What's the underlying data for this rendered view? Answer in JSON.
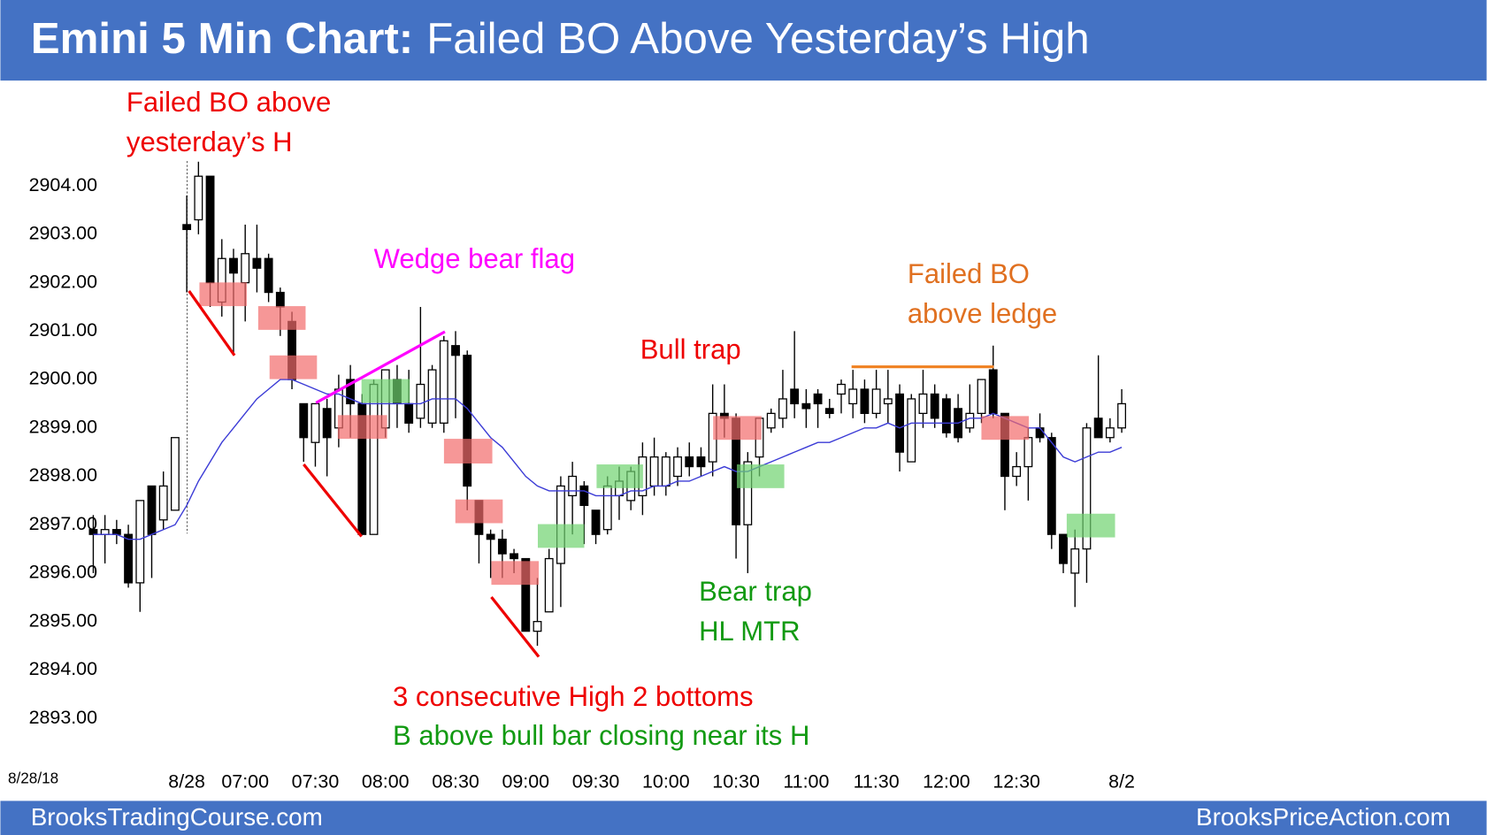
{
  "chart_data": {
    "type": "candlestick",
    "title_bold": "Emini 5 Min Chart:",
    "title": "Failed BO Above Yesterday’s High",
    "date_label": "8/28/18",
    "footer_left": "BrooksTradingCourse.com",
    "footer_right": "BrooksPriceAction.com",
    "categories": [
      null,
      null,
      null,
      null,
      null,
      null,
      null,
      null,
      "8/28",
      null,
      null,
      null,
      null,
      "07:00",
      null,
      null,
      null,
      null,
      null,
      "07:30",
      null,
      null,
      null,
      null,
      null,
      "08:00",
      null,
      null,
      null,
      null,
      null,
      "08:30",
      null,
      null,
      null,
      null,
      null,
      "09:00",
      null,
      null,
      null,
      null,
      null,
      "09:30",
      null,
      null,
      null,
      null,
      null,
      "10:00",
      null,
      null,
      null,
      null,
      null,
      "10:30",
      null,
      null,
      null,
      null,
      null,
      "11:00",
      null,
      null,
      null,
      null,
      null,
      "11:30",
      null,
      null,
      null,
      null,
      null,
      "12:00",
      null,
      null,
      null,
      null,
      null,
      "12:30",
      null,
      null,
      null,
      null,
      null,
      null,
      null,
      null,
      "8/2"
    ],
    "open": [
      2896.9,
      2896.8,
      2896.9,
      2896.8,
      2895.8,
      2897.8,
      2897.1,
      2897.3,
      2903.2,
      2903.3,
      2904.2,
      2901.6,
      2902.5,
      2902.0,
      2902.5,
      2902.5,
      2901.8,
      2901.2,
      2899.5,
      2898.7,
      2899.4,
      2899.0,
      2900.0,
      2899.5,
      2896.8,
      2899.0,
      2900.0,
      2899.5,
      2899.2,
      2899.1,
      2899.1,
      2900.7,
      2900.5,
      2897.5,
      2896.8,
      2896.7,
      2896.4,
      2896.3,
      2894.8,
      2895.2,
      2896.2,
      2897.6,
      2897.8,
      2897.3,
      2896.9,
      2897.6,
      2897.5,
      2897.6,
      2897.8,
      2897.8,
      2898.0,
      2898.4,
      2898.4,
      2898.3,
      2899.3,
      2899.2,
      2897.0,
      2898.4,
      2899.0,
      2899.2,
      2899.8,
      2899.5,
      2899.7,
      2899.4,
      2899.7,
      2899.5,
      2899.8,
      2899.3,
      2899.5,
      2899.7,
      2898.3,
      2899.3,
      2899.7,
      2899.6,
      2899.4,
      2899.0,
      2899.3,
      2900.2,
      2899.3,
      2898.0,
      2898.2,
      2899.0,
      2898.8,
      2896.8,
      2896.0,
      2896.5,
      2899.2,
      2898.8,
      2899.0
    ],
    "high": [
      2897.2,
      2897.2,
      2897.1,
      2897.0,
      2897.5,
      2897.8,
      2898.1,
      2898.8,
      2903.8,
      2904.5,
      2904.2,
      2902.9,
      2902.7,
      2903.2,
      2903.2,
      2902.6,
      2901.9,
      2901.4,
      2899.5,
      2899.5,
      2899.6,
      2900.1,
      2900.3,
      2899.7,
      2900.0,
      2900.2,
      2900.3,
      2900.2,
      2901.5,
      2900.3,
      2900.9,
      2901.0,
      2900.6,
      2897.5,
      2896.9,
      2896.9,
      2896.5,
      2896.3,
      2895.9,
      2896.5,
      2898.0,
      2898.3,
      2897.9,
      2897.3,
      2898.0,
      2898.2,
      2898.2,
      2898.7,
      2898.8,
      2898.5,
      2898.6,
      2898.7,
      2898.6,
      2899.9,
      2899.9,
      2899.3,
      2898.5,
      2899.2,
      2899.4,
      2900.2,
      2901.0,
      2899.8,
      2899.8,
      2899.6,
      2900.0,
      2900.2,
      2900.0,
      2900.2,
      2900.2,
      2899.9,
      2899.7,
      2900.2,
      2899.9,
      2899.7,
      2899.7,
      2899.9,
      2900.0,
      2900.7,
      2899.3,
      2898.5,
      2899.0,
      2899.3,
      2898.9,
      2896.8,
      2896.9,
      2899.1,
      2900.5,
      2899.2,
      2899.8
    ],
    "low": [
      2896.0,
      2896.2,
      2896.6,
      2895.7,
      2895.2,
      2895.9,
      2896.9,
      2897.3,
      2901.8,
      2903.0,
      2901.5,
      2901.3,
      2900.5,
      2901.2,
      2901.8,
      2901.6,
      2900.9,
      2899.8,
      2898.3,
      2898.2,
      2898.0,
      2898.6,
      2898.8,
      2896.8,
      2896.8,
      2898.8,
      2899.0,
      2898.9,
      2899.0,
      2899.0,
      2898.9,
      2899.2,
      2897.3,
      2896.2,
      2895.9,
      2895.9,
      2896.0,
      2894.8,
      2894.5,
      2895.3,
      2895.3,
      2896.8,
      2896.6,
      2896.6,
      2896.8,
      2897.1,
      2897.3,
      2897.2,
      2897.6,
      2897.6,
      2897.8,
      2898.0,
      2898.0,
      2898.0,
      2898.8,
      2896.3,
      2896.0,
      2898.0,
      2898.9,
      2899.0,
      2899.2,
      2899.0,
      2899.0,
      2899.2,
      2899.3,
      2899.2,
      2899.1,
      2899.2,
      2899.1,
      2898.1,
      2898.3,
      2899.0,
      2899.0,
      2898.8,
      2898.7,
      2898.9,
      2899.1,
      2899.2,
      2897.3,
      2897.8,
      2897.5,
      2898.7,
      2896.5,
      2896.0,
      2895.3,
      2895.8,
      2898.8,
      2898.7,
      2898.9
    ],
    "close": [
      2896.8,
      2896.9,
      2896.8,
      2895.8,
      2897.5,
      2896.8,
      2897.8,
      2898.8,
      2903.1,
      2904.2,
      2902.0,
      2902.5,
      2902.2,
      2902.6,
      2902.3,
      2901.8,
      2901.5,
      2900.0,
      2898.8,
      2899.5,
      2898.8,
      2899.8,
      2899.5,
      2896.8,
      2899.9,
      2900.2,
      2899.5,
      2899.1,
      2899.9,
      2900.2,
      2900.8,
      2900.5,
      2897.8,
      2896.8,
      2896.7,
      2896.4,
      2896.3,
      2894.8,
      2895.0,
      2896.3,
      2897.8,
      2898.0,
      2897.4,
      2896.8,
      2897.8,
      2897.9,
      2898.1,
      2898.4,
      2898.4,
      2898.4,
      2898.4,
      2898.2,
      2898.2,
      2899.3,
      2899.2,
      2897.0,
      2898.3,
      2899.2,
      2899.3,
      2899.6,
      2899.5,
      2899.4,
      2899.5,
      2899.3,
      2899.9,
      2899.8,
      2899.3,
      2899.8,
      2899.6,
      2898.5,
      2899.6,
      2899.7,
      2899.2,
      2898.9,
      2898.8,
      2899.3,
      2900.0,
      2899.3,
      2898.0,
      2898.2,
      2898.8,
      2898.8,
      2896.8,
      2896.2,
      2896.5,
      2899.0,
      2898.8,
      2899.0,
      2899.5
    ],
    "ema": [
      2896.8,
      2896.8,
      2896.8,
      2896.7,
      2896.7,
      2896.8,
      2896.9,
      2897.0,
      2897.4,
      2897.9,
      2898.3,
      2898.7,
      2899.0,
      2899.3,
      2899.6,
      2899.8,
      2900.0,
      2900.0,
      2899.9,
      2899.8,
      2899.7,
      2899.7,
      2899.6,
      2899.5,
      2899.5,
      2899.5,
      2899.5,
      2899.5,
      2899.5,
      2899.6,
      2899.6,
      2899.6,
      2899.4,
      2899.1,
      2898.8,
      2898.6,
      2898.3,
      2898.0,
      2897.8,
      2897.7,
      2897.7,
      2897.7,
      2897.7,
      2897.6,
      2897.6,
      2897.6,
      2897.7,
      2897.7,
      2897.8,
      2897.8,
      2897.9,
      2897.9,
      2898.0,
      2898.1,
      2898.2,
      2898.1,
      2898.1,
      2898.2,
      2898.3,
      2898.4,
      2898.5,
      2898.6,
      2898.7,
      2898.7,
      2898.8,
      2898.9,
      2899.0,
      2899.0,
      2899.1,
      2899.0,
      2899.1,
      2899.1,
      2899.1,
      2899.1,
      2899.1,
      2899.2,
      2899.2,
      2899.3,
      2899.2,
      2899.1,
      2899.0,
      2899.0,
      2898.7,
      2898.4,
      2898.3,
      2898.4,
      2898.5,
      2898.5,
      2898.6
    ],
    "up_color": "#ffffff",
    "down_color": "#000000",
    "ema_color": "#3b3bd6",
    "ylim": [
      2892,
      2906
    ],
    "yticks": [
      {
        "value": 2893,
        "label": "2893.00"
      },
      {
        "value": 2894,
        "label": "2894.00"
      },
      {
        "value": 2895,
        "label": "2895.00"
      },
      {
        "value": 2896,
        "label": "2896.00"
      },
      {
        "value": 2897,
        "label": "2897.00"
      },
      {
        "value": 2898,
        "label": "2898.00"
      },
      {
        "value": 2899,
        "label": "2899.00"
      },
      {
        "value": 2900,
        "label": "2900.00"
      },
      {
        "value": 2901,
        "label": "2901.00"
      },
      {
        "value": 2902,
        "label": "2902.00"
      },
      {
        "value": 2903,
        "label": "2903.00"
      },
      {
        "value": 2904,
        "label": "2904.00"
      }
    ],
    "annotations": [
      {
        "lines": [
          "Failed BO above",
          "yesterday’s H"
        ],
        "color": "#ee0000"
      },
      {
        "lines": [
          "Wedge bear flag"
        ],
        "color": "#ff00ff"
      },
      {
        "lines": [
          "Failed BO",
          "above ledge"
        ],
        "color": "#e07020"
      },
      {
        "lines": [
          "Bull trap"
        ],
        "color": "#ee0000"
      },
      {
        "lines": [
          "Bear trap",
          "HL MTR"
        ],
        "color": "#129a12"
      },
      {
        "lines": [
          "3 consecutive High 2 bottoms"
        ],
        "color": "#ee0000"
      },
      {
        "lines": [
          "B above bull bar closing near its H"
        ],
        "color": "#129a12"
      }
    ]
  }
}
